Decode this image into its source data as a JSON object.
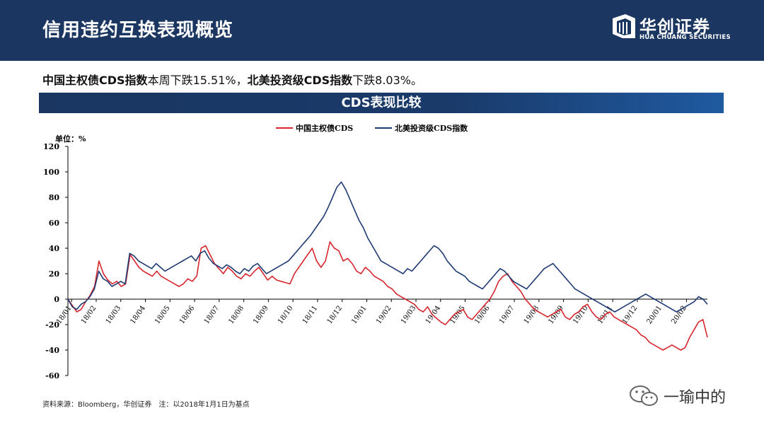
{
  "header": {
    "title": "信用违约互换表现概览",
    "logo_name": "华创证券",
    "logo_sub": "HUA CHUANG SECURITIES"
  },
  "summary": {
    "part1_bold": "中国主权债CDS指数",
    "part1_text": "本周下跌15.51%，",
    "part2_bold": "北美投资级CDS指数",
    "part2_text": "下跌8.03%。"
  },
  "chart_title": "CDS表现比较",
  "source_note": "资料来源：Bloomberg，华创证券　注：以2018年1月1日为基点",
  "watermark": "一瑜中的",
  "colors": {
    "header_bg": "#1a3661",
    "china": "#d7262e",
    "na": "#1f3b73"
  },
  "chart_data": {
    "type": "line",
    "unit_label": "单位：%",
    "ylim": [
      -60,
      120
    ],
    "yticks": [
      -60,
      -40,
      -20,
      0,
      20,
      40,
      60,
      80,
      100,
      120
    ],
    "x_tick_labels": [
      "18/01",
      "18/02",
      "18/03",
      "18/04",
      "18/05",
      "18/06",
      "18/07",
      "18/08",
      "18/09",
      "18/10",
      "18/11",
      "18/12",
      "19/01",
      "19/02",
      "19/03",
      "19/04",
      "19/05",
      "19/06",
      "19/07",
      "19/08",
      "19/09",
      "19/10",
      "19/11",
      "19/12",
      "20/01",
      "20/02"
    ],
    "legend_position": "top-center",
    "series": [
      {
        "name": "中国主权债CDS",
        "color": "#d7262e",
        "values": [
          0,
          -5,
          -10,
          -8,
          -2,
          3,
          10,
          30,
          20,
          15,
          12,
          14,
          10,
          12,
          35,
          30,
          25,
          22,
          20,
          18,
          22,
          18,
          16,
          14,
          12,
          10,
          12,
          16,
          14,
          18,
          40,
          42,
          35,
          28,
          24,
          20,
          25,
          22,
          18,
          16,
          20,
          18,
          22,
          25,
          20,
          15,
          18,
          15,
          14,
          13,
          12,
          20,
          25,
          30,
          35,
          40,
          30,
          25,
          30,
          45,
          40,
          38,
          30,
          32,
          28,
          22,
          20,
          25,
          22,
          18,
          16,
          14,
          10,
          8,
          4,
          2,
          0,
          -2,
          -4,
          -8,
          -10,
          -6,
          -12,
          -15,
          -18,
          -20,
          -16,
          -12,
          -10,
          -8,
          -14,
          -16,
          -12,
          -8,
          -4,
          0,
          6,
          14,
          18,
          20,
          14,
          10,
          6,
          0,
          -4,
          -8,
          -10,
          -12,
          -14,
          -12,
          -10,
          -8,
          -14,
          -16,
          -12,
          -10,
          -6,
          -4,
          -10,
          -14,
          -16,
          -12,
          -10,
          -14,
          -16,
          -18,
          -20,
          -22,
          -24,
          -28,
          -30,
          -34,
          -36,
          -38,
          -40,
          -38,
          -36,
          -38,
          -40,
          -38,
          -30,
          -24,
          -18,
          -16,
          -30
        ]
      },
      {
        "name": "北美投资级CDS指数",
        "color": "#1f3b73",
        "values": [
          0,
          -6,
          -8,
          -4,
          -2,
          2,
          8,
          22,
          16,
          14,
          10,
          12,
          14,
          12,
          36,
          34,
          30,
          28,
          26,
          24,
          28,
          25,
          22,
          24,
          26,
          28,
          30,
          32,
          34,
          30,
          36,
          38,
          32,
          28,
          26,
          24,
          27,
          25,
          22,
          20,
          24,
          22,
          26,
          28,
          24,
          20,
          22,
          24,
          26,
          28,
          30,
          34,
          38,
          42,
          46,
          50,
          55,
          60,
          65,
          72,
          80,
          88,
          92,
          86,
          78,
          70,
          62,
          56,
          48,
          42,
          36,
          30,
          28,
          26,
          24,
          22,
          20,
          24,
          22,
          26,
          30,
          34,
          38,
          42,
          40,
          36,
          30,
          26,
          22,
          20,
          18,
          14,
          12,
          10,
          8,
          12,
          16,
          20,
          24,
          22,
          18,
          14,
          12,
          10,
          8,
          12,
          16,
          20,
          24,
          26,
          28,
          24,
          20,
          16,
          12,
          8,
          6,
          4,
          2,
          0,
          -2,
          -4,
          -6,
          -8,
          -10,
          -8,
          -6,
          -4,
          -2,
          0,
          2,
          4,
          2,
          0,
          -2,
          -4,
          -6,
          -8,
          -10,
          -8,
          -6,
          -4,
          -2,
          2,
          0,
          -4
        ]
      }
    ]
  }
}
